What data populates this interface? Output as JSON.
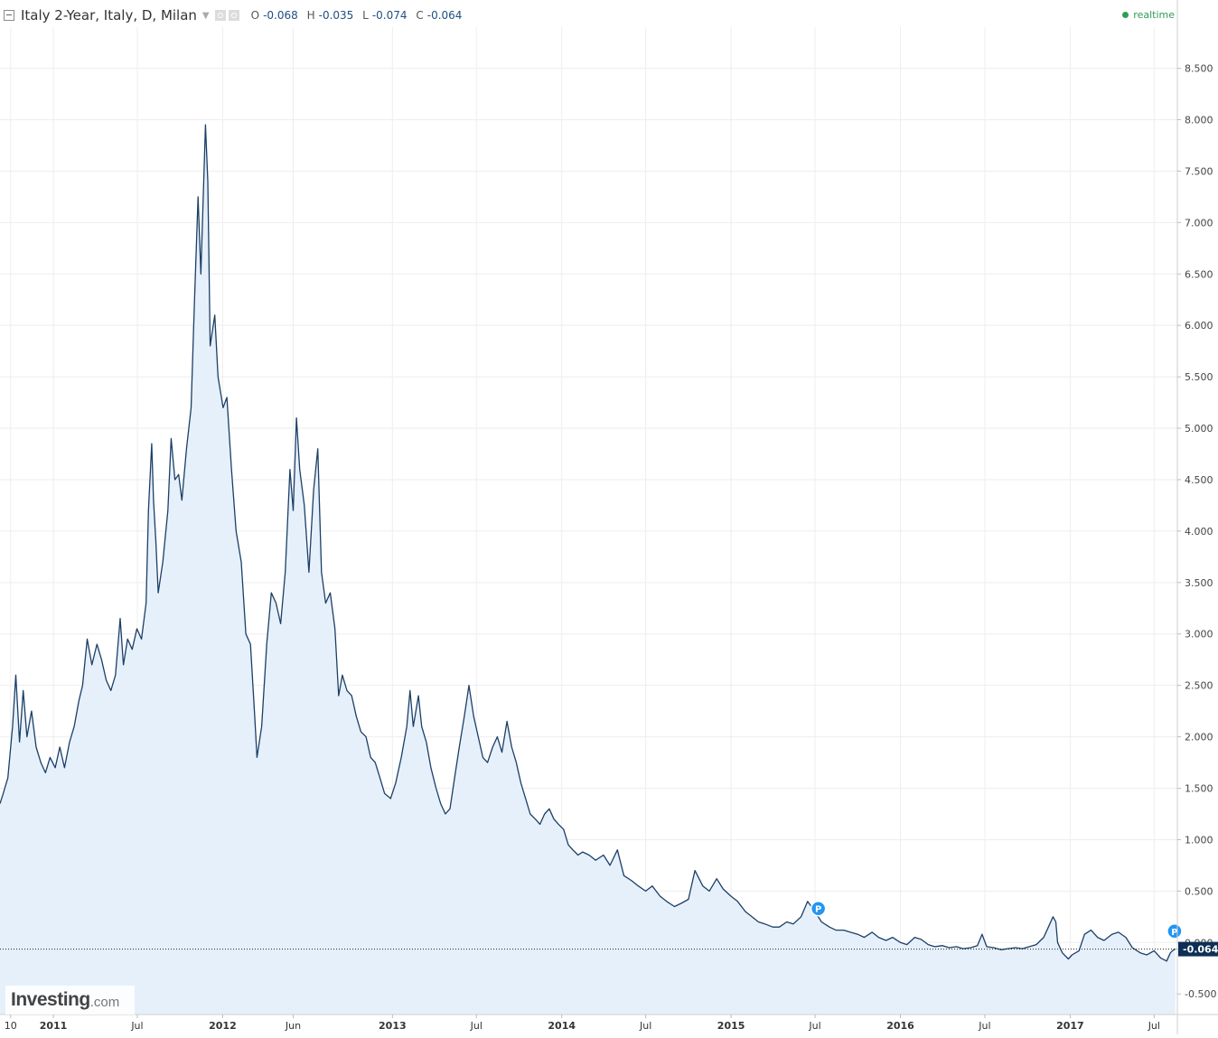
{
  "header": {
    "symbol": "Italy 2-Year, Italy, D, Milan",
    "ohlc": {
      "o_label": "O",
      "o": "-0.068",
      "h_label": "H",
      "h": "-0.035",
      "l_label": "L",
      "l": "-0.074",
      "c_label": "C",
      "c": "-0.064"
    },
    "realtime_label": "realtime"
  },
  "watermark": {
    "brand": "Investing",
    "suffix": ".com"
  },
  "colors": {
    "line": "#1c3f66",
    "area": "#e6f0fb",
    "grid": "#eeeeee",
    "price_tag": "#0e2f54",
    "marker": "#2196f3"
  },
  "chart_data": {
    "type": "area",
    "title": "",
    "xlabel": "",
    "ylabel": "",
    "ylim": [
      -0.7,
      8.9
    ],
    "xlim": [
      "2010-09-08",
      "2017-08-20"
    ],
    "y_ticks": [
      "-0.500",
      "0.000",
      "0.500",
      "1.000",
      "1.500",
      "2.000",
      "2.500",
      "3.000",
      "3.500",
      "4.000",
      "4.500",
      "5.000",
      "5.500",
      "6.000",
      "6.500",
      "7.000",
      "7.500",
      "8.000",
      "8.500"
    ],
    "x_ticks": [
      {
        "date": "2010-10-01",
        "label": "10"
      },
      {
        "date": "2011-01-01",
        "label": "2011"
      },
      {
        "date": "2011-07-01",
        "label": "Jul"
      },
      {
        "date": "2012-01-01",
        "label": "2012"
      },
      {
        "date": "2012-06-01",
        "label": "Jun"
      },
      {
        "date": "2013-01-01",
        "label": "2013"
      },
      {
        "date": "2013-07-01",
        "label": "Jul"
      },
      {
        "date": "2014-01-01",
        "label": "2014"
      },
      {
        "date": "2014-07-01",
        "label": "Jul"
      },
      {
        "date": "2015-01-01",
        "label": "2015"
      },
      {
        "date": "2015-07-01",
        "label": "Jul"
      },
      {
        "date": "2016-01-01",
        "label": "2016"
      },
      {
        "date": "2016-07-01",
        "label": "Jul"
      },
      {
        "date": "2017-01-01",
        "label": "2017"
      },
      {
        "date": "2017-07-01",
        "label": "Jul"
      }
    ],
    "series": [
      {
        "name": "Italy 2-Year",
        "points": [
          [
            "2010-09-08",
            1.35
          ],
          [
            "2010-09-15",
            1.45
          ],
          [
            "2010-09-25",
            1.6
          ],
          [
            "2010-10-05",
            2.1
          ],
          [
            "2010-10-12",
            2.6
          ],
          [
            "2010-10-20",
            1.95
          ],
          [
            "2010-10-28",
            2.45
          ],
          [
            "2010-11-05",
            2.0
          ],
          [
            "2010-11-15",
            2.25
          ],
          [
            "2010-11-25",
            1.9
          ],
          [
            "2010-12-05",
            1.75
          ],
          [
            "2010-12-15",
            1.65
          ],
          [
            "2010-12-25",
            1.8
          ],
          [
            "2011-01-05",
            1.7
          ],
          [
            "2011-01-15",
            1.9
          ],
          [
            "2011-01-25",
            1.7
          ],
          [
            "2011-02-05",
            1.95
          ],
          [
            "2011-02-15",
            2.1
          ],
          [
            "2011-02-25",
            2.35
          ],
          [
            "2011-03-05",
            2.5
          ],
          [
            "2011-03-15",
            2.95
          ],
          [
            "2011-03-25",
            2.7
          ],
          [
            "2011-04-05",
            2.9
          ],
          [
            "2011-04-15",
            2.75
          ],
          [
            "2011-04-25",
            2.55
          ],
          [
            "2011-05-05",
            2.45
          ],
          [
            "2011-05-15",
            2.6
          ],
          [
            "2011-05-25",
            3.15
          ],
          [
            "2011-06-01",
            2.7
          ],
          [
            "2011-06-10",
            2.95
          ],
          [
            "2011-06-20",
            2.85
          ],
          [
            "2011-06-30",
            3.05
          ],
          [
            "2011-07-10",
            2.95
          ],
          [
            "2011-07-20",
            3.3
          ],
          [
            "2011-07-25",
            4.2
          ],
          [
            "2011-08-01",
            4.85
          ],
          [
            "2011-08-05",
            4.3
          ],
          [
            "2011-08-10",
            3.9
          ],
          [
            "2011-08-15",
            3.4
          ],
          [
            "2011-08-25",
            3.7
          ],
          [
            "2011-09-05",
            4.2
          ],
          [
            "2011-09-12",
            4.9
          ],
          [
            "2011-09-20",
            4.5
          ],
          [
            "2011-09-28",
            4.55
          ],
          [
            "2011-10-05",
            4.3
          ],
          [
            "2011-10-15",
            4.8
          ],
          [
            "2011-10-25",
            5.2
          ],
          [
            "2011-11-01",
            6.2
          ],
          [
            "2011-11-09",
            7.25
          ],
          [
            "2011-11-15",
            6.5
          ],
          [
            "2011-11-25",
            7.95
          ],
          [
            "2011-11-30",
            7.4
          ],
          [
            "2011-12-05",
            5.8
          ],
          [
            "2011-12-15",
            6.1
          ],
          [
            "2011-12-22",
            5.5
          ],
          [
            "2012-01-02",
            5.2
          ],
          [
            "2012-01-10",
            5.3
          ],
          [
            "2012-01-20",
            4.6
          ],
          [
            "2012-01-30",
            4.0
          ],
          [
            "2012-02-10",
            3.7
          ],
          [
            "2012-02-20",
            3.0
          ],
          [
            "2012-03-01",
            2.9
          ],
          [
            "2012-03-10",
            2.2
          ],
          [
            "2012-03-15",
            1.8
          ],
          [
            "2012-03-25",
            2.1
          ],
          [
            "2012-04-05",
            2.9
          ],
          [
            "2012-04-15",
            3.4
          ],
          [
            "2012-04-25",
            3.3
          ],
          [
            "2012-05-05",
            3.1
          ],
          [
            "2012-05-15",
            3.6
          ],
          [
            "2012-05-25",
            4.6
          ],
          [
            "2012-06-01",
            4.2
          ],
          [
            "2012-06-08",
            5.1
          ],
          [
            "2012-06-15",
            4.6
          ],
          [
            "2012-06-25",
            4.25
          ],
          [
            "2012-07-05",
            3.6
          ],
          [
            "2012-07-15",
            4.4
          ],
          [
            "2012-07-24",
            4.8
          ],
          [
            "2012-08-01",
            3.6
          ],
          [
            "2012-08-10",
            3.3
          ],
          [
            "2012-08-20",
            3.4
          ],
          [
            "2012-08-30",
            3.05
          ],
          [
            "2012-09-07",
            2.4
          ],
          [
            "2012-09-15",
            2.6
          ],
          [
            "2012-09-25",
            2.45
          ],
          [
            "2012-10-05",
            2.4
          ],
          [
            "2012-10-15",
            2.2
          ],
          [
            "2012-10-25",
            2.05
          ],
          [
            "2012-11-05",
            2.0
          ],
          [
            "2012-11-15",
            1.8
          ],
          [
            "2012-11-25",
            1.75
          ],
          [
            "2012-12-05",
            1.6
          ],
          [
            "2012-12-15",
            1.45
          ],
          [
            "2012-12-28",
            1.4
          ],
          [
            "2013-01-08",
            1.55
          ],
          [
            "2013-01-20",
            1.8
          ],
          [
            "2013-02-01",
            2.1
          ],
          [
            "2013-02-08",
            2.45
          ],
          [
            "2013-02-15",
            2.1
          ],
          [
            "2013-02-26",
            2.4
          ],
          [
            "2013-03-05",
            2.1
          ],
          [
            "2013-03-15",
            1.95
          ],
          [
            "2013-03-25",
            1.7
          ],
          [
            "2013-04-05",
            1.5
          ],
          [
            "2013-04-15",
            1.35
          ],
          [
            "2013-04-25",
            1.25
          ],
          [
            "2013-05-05",
            1.3
          ],
          [
            "2013-05-15",
            1.6
          ],
          [
            "2013-05-25",
            1.9
          ],
          [
            "2013-06-05",
            2.2
          ],
          [
            "2013-06-15",
            2.5
          ],
          [
            "2013-06-25",
            2.2
          ],
          [
            "2013-07-05",
            2.0
          ],
          [
            "2013-07-15",
            1.8
          ],
          [
            "2013-07-25",
            1.75
          ],
          [
            "2013-08-05",
            1.9
          ],
          [
            "2013-08-15",
            2.0
          ],
          [
            "2013-08-25",
            1.85
          ],
          [
            "2013-09-05",
            2.15
          ],
          [
            "2013-09-15",
            1.9
          ],
          [
            "2013-09-25",
            1.75
          ],
          [
            "2013-10-05",
            1.55
          ],
          [
            "2013-10-15",
            1.4
          ],
          [
            "2013-10-25",
            1.25
          ],
          [
            "2013-11-05",
            1.2
          ],
          [
            "2013-11-15",
            1.15
          ],
          [
            "2013-11-25",
            1.25
          ],
          [
            "2013-12-05",
            1.3
          ],
          [
            "2013-12-15",
            1.2
          ],
          [
            "2013-12-25",
            1.15
          ],
          [
            "2014-01-05",
            1.1
          ],
          [
            "2014-01-15",
            0.95
          ],
          [
            "2014-01-25",
            0.9
          ],
          [
            "2014-02-05",
            0.85
          ],
          [
            "2014-02-15",
            0.88
          ],
          [
            "2014-03-01",
            0.85
          ],
          [
            "2014-03-15",
            0.8
          ],
          [
            "2014-04-01",
            0.85
          ],
          [
            "2014-04-15",
            0.75
          ],
          [
            "2014-05-01",
            0.9
          ],
          [
            "2014-05-15",
            0.65
          ],
          [
            "2014-06-01",
            0.6
          ],
          [
            "2014-06-15",
            0.55
          ],
          [
            "2014-07-01",
            0.5
          ],
          [
            "2014-07-15",
            0.55
          ],
          [
            "2014-08-01",
            0.45
          ],
          [
            "2014-08-15",
            0.4
          ],
          [
            "2014-09-01",
            0.35
          ],
          [
            "2014-09-15",
            0.38
          ],
          [
            "2014-10-01",
            0.42
          ],
          [
            "2014-10-15",
            0.7
          ],
          [
            "2014-11-01",
            0.55
          ],
          [
            "2014-11-15",
            0.5
          ],
          [
            "2014-12-01",
            0.62
          ],
          [
            "2014-12-15",
            0.52
          ],
          [
            "2015-01-01",
            0.45
          ],
          [
            "2015-01-15",
            0.4
          ],
          [
            "2015-02-01",
            0.3
          ],
          [
            "2015-02-15",
            0.25
          ],
          [
            "2015-03-01",
            0.2
          ],
          [
            "2015-03-15",
            0.18
          ],
          [
            "2015-04-01",
            0.15
          ],
          [
            "2015-04-15",
            0.15
          ],
          [
            "2015-05-01",
            0.2
          ],
          [
            "2015-05-15",
            0.18
          ],
          [
            "2015-06-01",
            0.25
          ],
          [
            "2015-06-15",
            0.4
          ],
          [
            "2015-07-01",
            0.3
          ],
          [
            "2015-07-15",
            0.2
          ],
          [
            "2015-08-01",
            0.15
          ],
          [
            "2015-08-15",
            0.12
          ],
          [
            "2015-09-01",
            0.12
          ],
          [
            "2015-09-15",
            0.1
          ],
          [
            "2015-10-01",
            0.08
          ],
          [
            "2015-10-15",
            0.05
          ],
          [
            "2015-11-01",
            0.1
          ],
          [
            "2015-11-15",
            0.05
          ],
          [
            "2015-12-01",
            0.02
          ],
          [
            "2015-12-15",
            0.05
          ],
          [
            "2016-01-01",
            0.0
          ],
          [
            "2016-01-15",
            -0.02
          ],
          [
            "2016-02-01",
            0.05
          ],
          [
            "2016-02-15",
            0.03
          ],
          [
            "2016-03-01",
            -0.02
          ],
          [
            "2016-03-15",
            -0.04
          ],
          [
            "2016-04-01",
            -0.03
          ],
          [
            "2016-04-15",
            -0.05
          ],
          [
            "2016-05-01",
            -0.04
          ],
          [
            "2016-05-15",
            -0.06
          ],
          [
            "2016-06-01",
            -0.05
          ],
          [
            "2016-06-15",
            -0.03
          ],
          [
            "2016-06-25",
            0.08
          ],
          [
            "2016-07-05",
            -0.04
          ],
          [
            "2016-07-20",
            -0.05
          ],
          [
            "2016-08-05",
            -0.07
          ],
          [
            "2016-08-20",
            -0.06
          ],
          [
            "2016-09-05",
            -0.05
          ],
          [
            "2016-09-20",
            -0.06
          ],
          [
            "2016-10-05",
            -0.04
          ],
          [
            "2016-10-20",
            -0.02
          ],
          [
            "2016-11-05",
            0.05
          ],
          [
            "2016-11-15",
            0.15
          ],
          [
            "2016-11-25",
            0.25
          ],
          [
            "2016-12-01",
            0.2
          ],
          [
            "2016-12-05",
            0.0
          ],
          [
            "2016-12-15",
            -0.1
          ],
          [
            "2016-12-28",
            -0.16
          ],
          [
            "2017-01-05",
            -0.12
          ],
          [
            "2017-01-20",
            -0.08
          ],
          [
            "2017-02-01",
            0.08
          ],
          [
            "2017-02-15",
            0.12
          ],
          [
            "2017-03-01",
            0.05
          ],
          [
            "2017-03-15",
            0.02
          ],
          [
            "2017-04-01",
            0.08
          ],
          [
            "2017-04-15",
            0.1
          ],
          [
            "2017-05-01",
            0.05
          ],
          [
            "2017-05-15",
            -0.05
          ],
          [
            "2017-06-01",
            -0.1
          ],
          [
            "2017-06-15",
            -0.12
          ],
          [
            "2017-07-01",
            -0.08
          ],
          [
            "2017-07-15",
            -0.15
          ],
          [
            "2017-07-28",
            -0.18
          ],
          [
            "2017-08-05",
            -0.1
          ],
          [
            "2017-08-12",
            -0.07
          ],
          [
            "2017-08-16",
            -0.064
          ]
        ]
      }
    ],
    "markers": [
      {
        "date": "2015-07-08",
        "value": 0.33,
        "label": "P"
      },
      {
        "date": "2017-08-14",
        "value": 0.11,
        "label": "P"
      }
    ],
    "last_value": {
      "value": -0.064,
      "label": "-0.064"
    },
    "grid": true,
    "legend": "top-left"
  }
}
